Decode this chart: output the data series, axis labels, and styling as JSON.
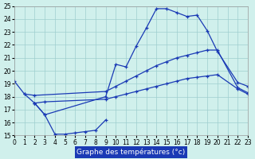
{
  "title": "Graphe des températures (°c)",
  "background_color": "#d0f0ec",
  "line_color": "#1a3ab5",
  "grid_color": "#9ecece",
  "xlim": [
    0,
    23
  ],
  "ylim": [
    15,
    25
  ],
  "xticks": [
    0,
    1,
    2,
    3,
    4,
    5,
    6,
    7,
    8,
    9,
    10,
    11,
    12,
    13,
    14,
    15,
    16,
    17,
    18,
    19,
    20,
    21,
    22,
    23
  ],
  "yticks": [
    15,
    16,
    17,
    18,
    19,
    20,
    21,
    22,
    23,
    24,
    25
  ],
  "series": [
    {
      "x": [
        0,
        1,
        2,
        3,
        9,
        10,
        11,
        12,
        13,
        14,
        15,
        16,
        17,
        18,
        19,
        20,
        22,
        23
      ],
      "y": [
        19.2,
        18.2,
        17.5,
        16.6,
        18.0,
        20.5,
        20.3,
        21.9,
        23.3,
        24.8,
        24.8,
        24.5,
        24.2,
        24.3,
        23.1,
        21.5,
        19.1,
        18.8
      ]
    },
    {
      "x": [
        1,
        2,
        9,
        10,
        11,
        12,
        13,
        14,
        15,
        16,
        17,
        18,
        19,
        20,
        22,
        23
      ],
      "y": [
        18.2,
        18.1,
        18.4,
        18.8,
        19.2,
        19.6,
        20.0,
        20.4,
        20.7,
        21.0,
        21.2,
        21.4,
        21.6,
        21.6,
        18.7,
        18.3
      ]
    },
    {
      "x": [
        2,
        3,
        9,
        10,
        11,
        12,
        13,
        14,
        15,
        16,
        17,
        18,
        19,
        20,
        22,
        23
      ],
      "y": [
        17.5,
        17.6,
        17.8,
        18.0,
        18.2,
        18.4,
        18.6,
        18.8,
        19.0,
        19.2,
        19.4,
        19.5,
        19.6,
        19.7,
        18.6,
        18.2
      ]
    },
    {
      "x": [
        2,
        3,
        4,
        5,
        6,
        7,
        8,
        9
      ],
      "y": [
        17.5,
        16.6,
        15.1,
        15.1,
        15.2,
        15.3,
        15.4,
        16.2
      ]
    }
  ]
}
